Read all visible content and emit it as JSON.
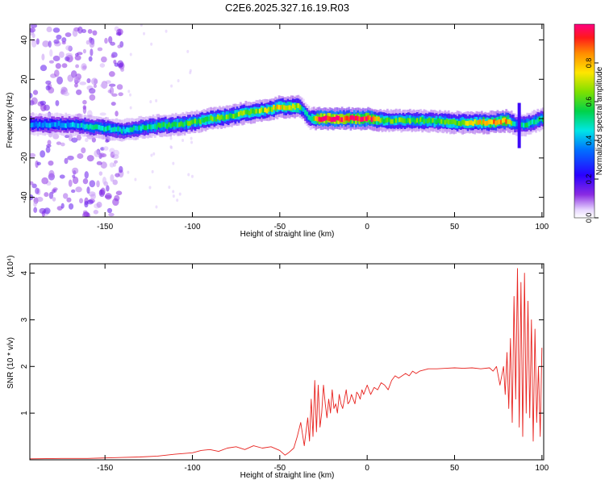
{
  "title": "C2E6.2025.327.16.19.R03",
  "colorbar": {
    "label": "Normalized spectral amplitude",
    "ticks": [
      "0.0",
      "0.2",
      "0.4",
      "0.6",
      "0.8"
    ],
    "tick_values": [
      0.0,
      0.2,
      0.4,
      0.6,
      0.8
    ],
    "range": [
      0,
      1
    ]
  },
  "colors": {
    "snr_line": "#e8231f",
    "axis": "#000000"
  },
  "chart_data": [
    {
      "type": "heatmap",
      "title": "C2E6.2025.327.16.19.R03",
      "xlabel": "Height of straight line (km)",
      "ylabel": "Frequency (Hz)",
      "xlim": [
        -193,
        101
      ],
      "ylim": [
        -50,
        48
      ],
      "xticks": [
        -150,
        -100,
        -50,
        0,
        50,
        100
      ],
      "xtick_labels": [
        "-150",
        "-100",
        "-50",
        "0",
        "50",
        "100"
      ],
      "yticks": [
        -40,
        -20,
        0,
        20,
        40
      ],
      "ytick_labels": [
        "-40",
        "-20",
        "0",
        "20",
        "40"
      ],
      "ridge": [
        {
          "x": -193,
          "f": -3,
          "a": 0.35
        },
        {
          "x": -170,
          "f": -3,
          "a": 0.4
        },
        {
          "x": -150,
          "f": -5,
          "a": 0.5
        },
        {
          "x": -140,
          "f": -6,
          "a": 0.45
        },
        {
          "x": -125,
          "f": -4,
          "a": 0.5
        },
        {
          "x": -110,
          "f": -3,
          "a": 0.55
        },
        {
          "x": -100,
          "f": -2,
          "a": 0.6
        },
        {
          "x": -90,
          "f": 0,
          "a": 0.6
        },
        {
          "x": -80,
          "f": 1,
          "a": 0.6
        },
        {
          "x": -70,
          "f": 3,
          "a": 0.65
        },
        {
          "x": -60,
          "f": 4,
          "a": 0.65
        },
        {
          "x": -50,
          "f": 6,
          "a": 0.75
        },
        {
          "x": -40,
          "f": 6,
          "a": 0.7
        },
        {
          "x": -37,
          "f": 4,
          "a": 0.4
        },
        {
          "x": -33,
          "f": 0,
          "a": 0.5
        },
        {
          "x": -28,
          "f": 0,
          "a": 0.95
        },
        {
          "x": -20,
          "f": 0,
          "a": 1.0
        },
        {
          "x": -10,
          "f": 0,
          "a": 0.95
        },
        {
          "x": 0,
          "f": 0,
          "a": 1.0
        },
        {
          "x": 10,
          "f": -1,
          "a": 0.6
        },
        {
          "x": 30,
          "f": -1,
          "a": 0.6
        },
        {
          "x": 50,
          "f": -2,
          "a": 0.6
        },
        {
          "x": 70,
          "f": -2,
          "a": 0.8
        },
        {
          "x": 80,
          "f": -1,
          "a": 0.8
        },
        {
          "x": 85,
          "f": -3,
          "a": 0.4
        },
        {
          "x": 90,
          "f": -3,
          "a": 0.5
        },
        {
          "x": 100,
          "f": 0,
          "a": 0.5
        }
      ],
      "noise_region": {
        "x": [
          -193,
          -140
        ],
        "f": [
          -50,
          48
        ],
        "a": 0.05
      },
      "spikes": [
        {
          "x": 87,
          "f_low": -15,
          "f_high": 8,
          "a": 0.2
        }
      ]
    },
    {
      "type": "line",
      "xlabel": "Height of straight line (km)",
      "ylabel": "SNR (10 * v/v)",
      "yscale_label": "(x10⁴)",
      "xlim": [
        -193,
        101
      ],
      "ylim": [
        0,
        4.2
      ],
      "xticks": [
        -150,
        -100,
        -50,
        0,
        50,
        100
      ],
      "xtick_labels": [
        "-150",
        "-100",
        "-50",
        "0",
        "50",
        "100"
      ],
      "yticks": [
        1,
        2,
        3,
        4
      ],
      "ytick_labels": [
        "1",
        "2",
        "3",
        "4"
      ],
      "series": [
        {
          "name": "SNR",
          "x": [
            -193,
            -175,
            -160,
            -150,
            -140,
            -130,
            -120,
            -110,
            -100,
            -95,
            -90,
            -85,
            -80,
            -75,
            -70,
            -65,
            -60,
            -55,
            -50,
            -47,
            -45,
            -42,
            -40,
            -38,
            -36,
            -34,
            -33,
            -32,
            -31,
            -30,
            -29,
            -28,
            -27,
            -26,
            -25,
            -24,
            -23,
            -22,
            -21,
            -20,
            -19,
            -18,
            -17,
            -16,
            -15,
            -14,
            -13,
            -12,
            -11,
            -10,
            -9,
            -8,
            -7,
            -6,
            -5,
            -4,
            -3,
            -2,
            -1,
            0,
            2,
            4,
            6,
            8,
            10,
            12,
            14,
            16,
            18,
            20,
            22,
            24,
            26,
            28,
            30,
            32,
            35,
            40,
            45,
            50,
            55,
            60,
            65,
            70,
            72,
            74,
            76,
            78,
            79,
            80,
            81,
            82,
            83,
            84,
            85,
            86,
            87,
            88,
            89,
            90,
            91,
            92,
            93,
            94,
            95,
            96,
            97,
            98,
            99,
            100
          ],
          "values": [
            0.02,
            0.03,
            0.03,
            0.04,
            0.05,
            0.06,
            0.08,
            0.12,
            0.15,
            0.2,
            0.22,
            0.18,
            0.25,
            0.28,
            0.22,
            0.3,
            0.25,
            0.28,
            0.2,
            0.1,
            0.15,
            0.25,
            0.5,
            0.8,
            0.3,
            0.9,
            0.4,
            1.3,
            0.5,
            1.7,
            0.6,
            1.6,
            0.7,
            1.0,
            1.6,
            1.2,
            0.9,
            1.3,
            1.0,
            1.5,
            1.1,
            1.2,
            1.0,
            1.4,
            1.2,
            1.1,
            1.3,
            1.5,
            1.2,
            1.25,
            1.4,
            1.3,
            1.2,
            1.45,
            1.4,
            1.3,
            1.5,
            1.4,
            1.5,
            1.6,
            1.4,
            1.55,
            1.5,
            1.65,
            1.6,
            1.5,
            1.7,
            1.8,
            1.75,
            1.8,
            1.85,
            1.8,
            1.9,
            1.85,
            1.9,
            1.92,
            1.95,
            1.95,
            1.96,
            1.97,
            1.96,
            1.97,
            1.95,
            1.97,
            1.9,
            2.0,
            1.6,
            2.0,
            1.4,
            2.3,
            1.1,
            2.6,
            0.8,
            3.5,
            1.3,
            4.1,
            0.7,
            3.8,
            0.5,
            4.0,
            1.0,
            3.4,
            0.9,
            3.0,
            0.4,
            2.8,
            0.8,
            2.0,
            0.5,
            2.4
          ]
        }
      ]
    }
  ]
}
